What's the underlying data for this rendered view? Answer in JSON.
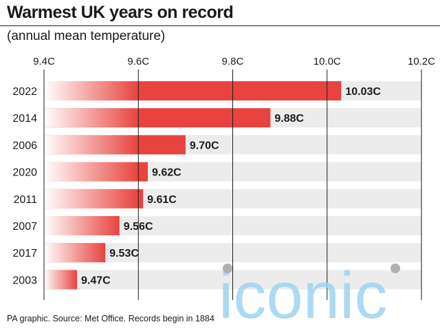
{
  "header": {
    "title": "Warmest UK years on record",
    "subtitle": "(annual mean temperature)"
  },
  "footer": {
    "source": "PA graphic. Source: Met Office. Records begin in 1884"
  },
  "watermark": {
    "text": "iconic",
    "color": "#9ed4f0"
  },
  "colors": {
    "bar": "#e8433f",
    "track": "#ececec",
    "gridline": "#1a1a1a"
  },
  "chart_data": {
    "type": "bar",
    "orientation": "horizontal",
    "title": "Warmest UK years on record",
    "subtitle": "(annual mean temperature)",
    "categories": [
      "2022",
      "2014",
      "2006",
      "2020",
      "2011",
      "2007",
      "2017",
      "2003"
    ],
    "values": [
      10.03,
      9.88,
      9.7,
      9.62,
      9.61,
      9.56,
      9.53,
      9.47
    ],
    "value_labels": [
      "10.03C",
      "9.88C",
      "9.70C",
      "9.62C",
      "9.61C",
      "9.56C",
      "9.53C",
      "9.47C"
    ],
    "xlim": [
      9.4,
      10.2
    ],
    "xticks": [
      9.4,
      9.6,
      9.8,
      10.0,
      10.2
    ],
    "xtick_labels": [
      "9.4C",
      "9.6C",
      "9.8C",
      "10.0C",
      "10.2C"
    ],
    "xlabel": "",
    "ylabel": "",
    "axis_position": "top",
    "grid": true,
    "legend": "none"
  }
}
